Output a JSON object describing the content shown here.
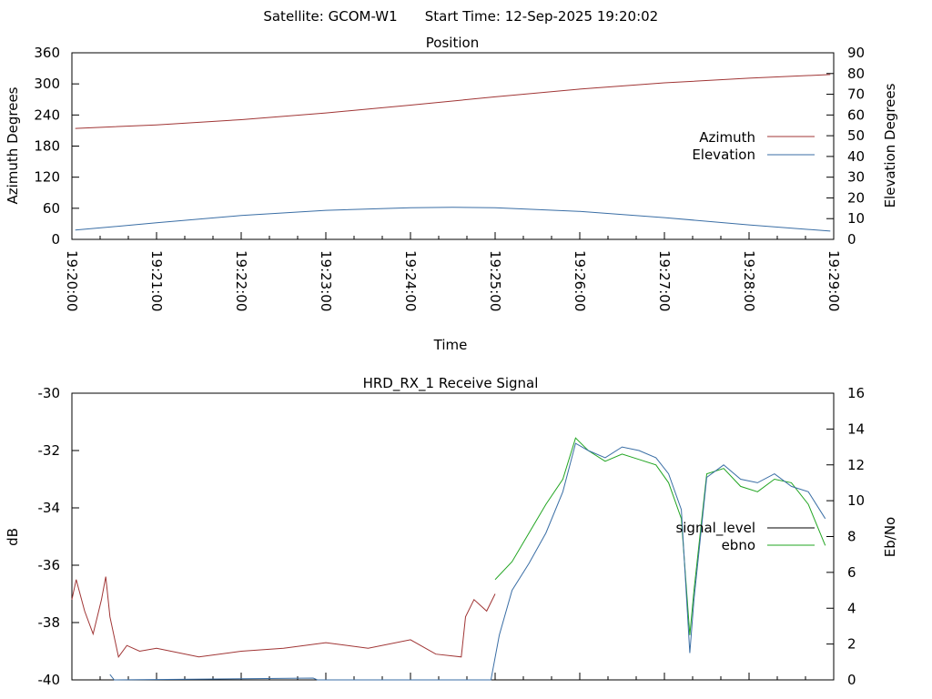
{
  "header": {
    "satellite": "Satellite: GCOM-W1",
    "start_time": "Start Time: 12-Sep-2025 19:20:02"
  },
  "colors": {
    "azimuth": "#a03535",
    "elevation": "#3a6ea5",
    "signal_level": "#a03535",
    "ebno": "#22a522",
    "blue_trace": "#3a6ea5"
  },
  "chart_data": [
    {
      "type": "line",
      "title": "Position",
      "xlabel": "Time",
      "ylabel": "Azimuth Degrees",
      "y2label": "Elevation Degrees",
      "x_ticks": [
        "19:20:00",
        "19:21:00",
        "19:22:00",
        "19:23:00",
        "19:24:00",
        "19:25:00",
        "19:26:00",
        "19:27:00",
        "19:28:00",
        "19:29:00"
      ],
      "xlim_minutes": [
        0,
        9
      ],
      "ylim": [
        0,
        360
      ],
      "y_ticks": [
        "0",
        "60",
        "120",
        "180",
        "240",
        "300",
        "360"
      ],
      "y2lim": [
        0,
        90
      ],
      "y2_ticks": [
        "0",
        "10",
        "20",
        "30",
        "40",
        "50",
        "60",
        "70",
        "80",
        "90"
      ],
      "legend_position": "right",
      "series": [
        {
          "name": "Azimuth",
          "axis": "y",
          "x": [
            0.04,
            1,
            2,
            3,
            4,
            5,
            6,
            7,
            8,
            8.96
          ],
          "values": [
            214,
            221,
            231,
            244,
            259,
            275,
            290,
            302,
            311,
            318
          ]
        },
        {
          "name": "Elevation",
          "axis": "y2",
          "x": [
            0.04,
            1,
            2,
            3,
            4,
            4.5,
            5,
            6,
            7,
            8,
            8.96
          ],
          "values": [
            4.5,
            8,
            11.5,
            14,
            15.3,
            15.5,
            15.3,
            13.5,
            10.5,
            7,
            4
          ]
        }
      ]
    },
    {
      "type": "line",
      "title": "HRD_RX_1 Receive Signal",
      "xlabel": "",
      "ylabel": "dB",
      "y2label": "Eb/No",
      "xlim_minutes": [
        0,
        9
      ],
      "ylim": [
        -40,
        -30
      ],
      "y_ticks": [
        "-40",
        "-38",
        "-36",
        "-34",
        "-32",
        "-30"
      ],
      "y2lim": [
        0,
        16
      ],
      "y2_ticks": [
        "0",
        "2",
        "4",
        "6",
        "8",
        "10",
        "12",
        "14",
        "16"
      ],
      "legend_position": "right",
      "series": [
        {
          "name": "signal_level",
          "axis": "y",
          "x": [
            0,
            0.05,
            0.15,
            0.25,
            0.35,
            0.4,
            0.45,
            0.55,
            0.65,
            0.8,
            1,
            1.5,
            2,
            2.5,
            3,
            3.5,
            4,
            4.3,
            4.6,
            4.65,
            4.75,
            4.9,
            5.0
          ],
          "values": [
            -37.2,
            -36.5,
            -37.6,
            -38.4,
            -37.2,
            -36.4,
            -37.8,
            -39.2,
            -38.8,
            -39.0,
            -38.9,
            -39.2,
            -39.0,
            -38.9,
            -38.7,
            -38.9,
            -38.6,
            -39.1,
            -39.2,
            -37.8,
            -37.2,
            -37.6,
            -37.0
          ]
        },
        {
          "name": "ebno",
          "axis": "y2",
          "x": [
            5.0,
            5.2,
            5.4,
            5.6,
            5.8,
            5.95,
            6.1,
            6.3,
            6.5,
            6.7,
            6.9,
            7.05,
            7.2,
            7.3,
            7.35,
            7.5,
            7.7,
            7.9,
            8.1,
            8.3,
            8.5,
            8.7,
            8.9
          ],
          "values": [
            5.6,
            6.6,
            8.2,
            9.8,
            11.2,
            13.5,
            12.8,
            12.2,
            12.6,
            12.3,
            12.0,
            11.0,
            9.0,
            2.5,
            5.0,
            11.5,
            11.8,
            10.8,
            10.5,
            11.2,
            11.0,
            9.8,
            7.5
          ]
        },
        {
          "name": "",
          "axis": "y2",
          "x": [
            0.45,
            0.5,
            2.85,
            2.9,
            4.95,
            5.05,
            5.2,
            5.4,
            5.6,
            5.8,
            5.95,
            6.1,
            6.3,
            6.5,
            6.7,
            6.9,
            7.05,
            7.2,
            7.3,
            7.35,
            7.5,
            7.7,
            7.9,
            8.1,
            8.3,
            8.5,
            8.7,
            8.9
          ],
          "values": [
            0.3,
            0.0,
            0.1,
            0.0,
            0.0,
            2.5,
            5.0,
            6.5,
            8.2,
            10.5,
            13.2,
            12.8,
            12.4,
            13.0,
            12.8,
            12.4,
            11.5,
            9.5,
            1.5,
            4.5,
            11.3,
            12.0,
            11.2,
            11.0,
            11.5,
            10.8,
            10.5,
            9.0
          ]
        }
      ]
    }
  ]
}
